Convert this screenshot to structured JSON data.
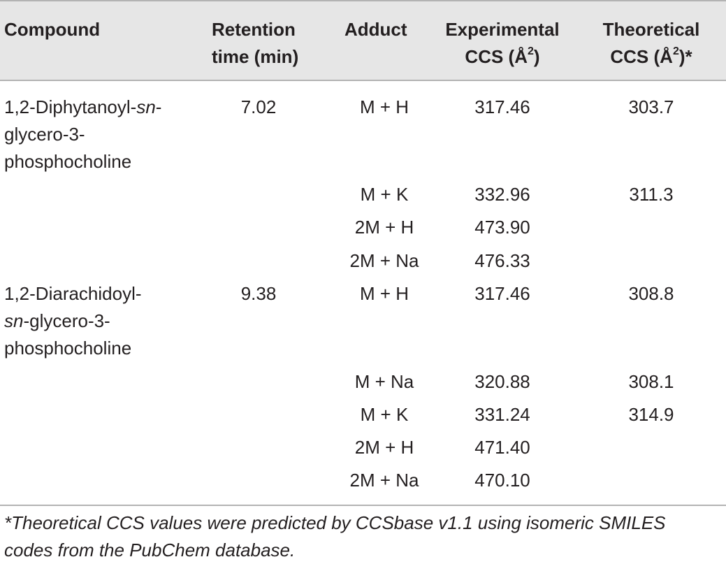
{
  "headers": {
    "compound": "Compound",
    "retention_line1": "Retention",
    "retention_line2": "time (min)",
    "adduct": "Adduct",
    "experimental_line1": "Experimental",
    "experimental_line2_prefix": "CCS (Å",
    "experimental_sup": "2",
    "experimental_line2_suffix": ")",
    "theoretical_line1": "Theoretical",
    "theoretical_line2_prefix": "CCS (Å",
    "theoretical_sup": "2",
    "theoretical_line2_suffix": ")*"
  },
  "compounds": [
    {
      "name_line1_prefix": "1,2-Diphytanoyl-",
      "name_line1_italic": "sn",
      "name_line1_suffix": "-",
      "name_line2": "glycero-3-",
      "name_line3": "phosphocholine",
      "retention_time": "7.02"
    },
    {
      "name_line1": "1,2-Diarachidoyl-",
      "name_line2_italic": "sn",
      "name_line2_suffix": "-glycero-3-",
      "name_line3": "phosphocholine",
      "retention_time": "9.38"
    }
  ],
  "rows": [
    {
      "adduct": "M + H",
      "experimental": "317.46",
      "theoretical": "303.7"
    },
    {
      "adduct": "M + K",
      "experimental": "332.96",
      "theoretical": "311.3"
    },
    {
      "adduct": "2M + H",
      "experimental": "473.90",
      "theoretical": ""
    },
    {
      "adduct": "2M + Na",
      "experimental": "476.33",
      "theoretical": ""
    },
    {
      "adduct": "M + H",
      "experimental": "317.46",
      "theoretical": "308.8"
    },
    {
      "adduct": "M + Na",
      "experimental": "320.88",
      "theoretical": "308.1"
    },
    {
      "adduct": "M + K",
      "experimental": "331.24",
      "theoretical": "314.9"
    },
    {
      "adduct": "2M + H",
      "experimental": "471.40",
      "theoretical": ""
    },
    {
      "adduct": "2M + Na",
      "experimental": "470.10",
      "theoretical": ""
    }
  ],
  "footnote_line1": "*Theoretical CCS values were predicted by CCSbase v1.1 using isomeric SMILES",
  "footnote_line2": "codes from the PubChem database."
}
